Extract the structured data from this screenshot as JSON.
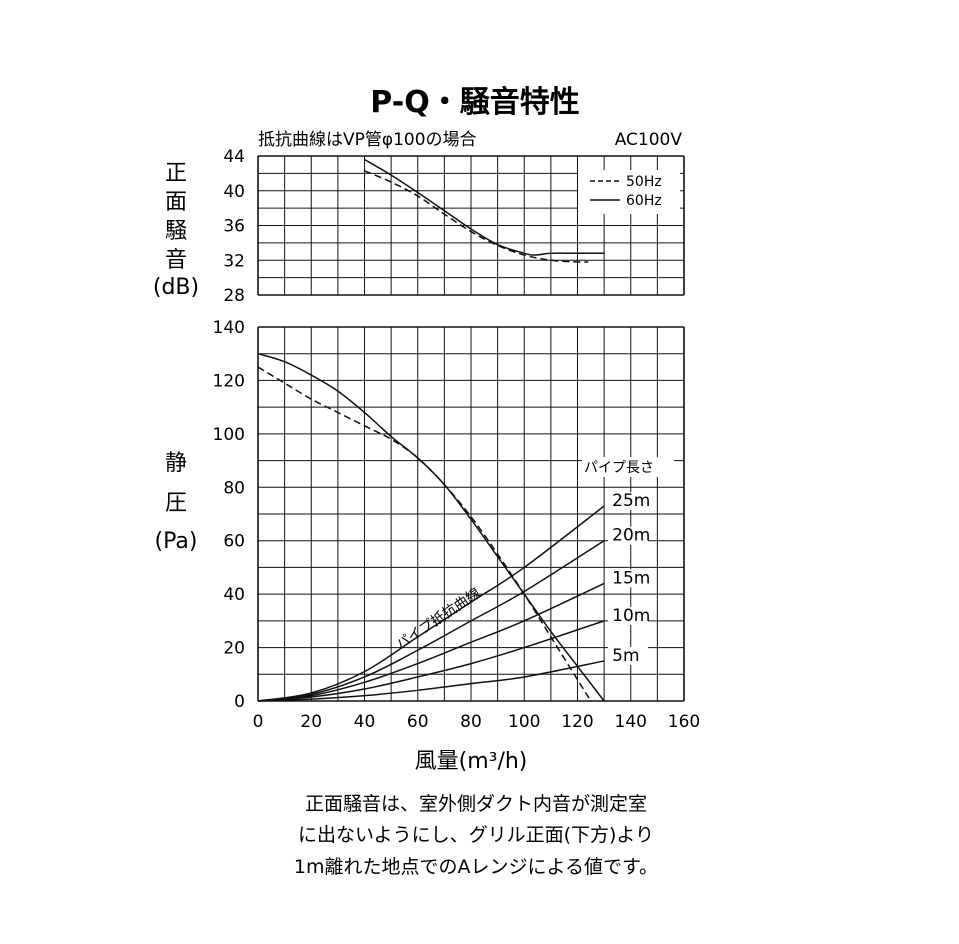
{
  "title": "P-Q・騒音特性",
  "subtitle": "抵抗曲線はVP管φ100の場合",
  "voltage": "AC100V",
  "noise_ylabel_chars": [
    "正",
    "面",
    "騒",
    "音"
  ],
  "noise_ylabel_unit": "(dB)",
  "pressure_ylabel_chars": [
    "静",
    "圧"
  ],
  "pressure_ylabel_unit": "(Pa)",
  "xlabel": "風量(m³/h)",
  "legend": [
    {
      "label": "50Hz",
      "style": "dashed"
    },
    {
      "label": "60Hz",
      "style": "solid"
    }
  ],
  "pipe_length_label": "パイプ長さ",
  "pipe_curve_label": "パイプ抵抗曲線",
  "notes": [
    "正面騒音は、室外側ダクト内音が測定室",
    "に出ないようにし、グリル正面(下方)より",
    "1m離れた地点でのAレンジによる値です。"
  ],
  "chart_data": [
    {
      "type": "line",
      "title": "",
      "ylabel": "正面騒音(dB)",
      "xlim": [
        0,
        160
      ],
      "ylim": [
        28,
        44
      ],
      "x_ticks": [
        0,
        20,
        40,
        60,
        80,
        100,
        120,
        140,
        160
      ],
      "y_ticks": [
        28,
        32,
        36,
        40,
        44
      ],
      "grid": true,
      "legend_position": "top-right",
      "series": [
        {
          "name": "50Hz",
          "style": "dashed",
          "x": [
            40,
            50,
            60,
            70,
            80,
            90,
            100,
            110,
            120,
            124
          ],
          "y": [
            42.3,
            41.0,
            39.4,
            37.3,
            35.3,
            33.7,
            32.6,
            32.0,
            31.8,
            31.8
          ]
        },
        {
          "name": "60Hz",
          "style": "solid",
          "x": [
            40,
            50,
            60,
            70,
            80,
            90,
            100,
            104,
            110,
            120,
            130
          ],
          "y": [
            43.6,
            41.8,
            39.8,
            37.7,
            35.6,
            33.8,
            32.8,
            32.6,
            32.8,
            32.8,
            32.8
          ]
        }
      ]
    },
    {
      "type": "line",
      "title": "",
      "xlabel": "風量(m³/h)",
      "ylabel": "静圧(Pa)",
      "xlim": [
        0,
        160
      ],
      "ylim": [
        0,
        140
      ],
      "x_ticks": [
        0,
        20,
        40,
        60,
        80,
        100,
        120,
        140,
        160
      ],
      "y_ticks": [
        0,
        20,
        40,
        60,
        80,
        100,
        120,
        140
      ],
      "grid": true,
      "series": [
        {
          "name": "50Hz",
          "style": "dashed",
          "x": [
            0,
            10,
            20,
            30,
            40,
            50,
            60,
            70,
            80,
            90,
            100,
            110,
            120,
            125
          ],
          "y": [
            125,
            119,
            113,
            108,
            103,
            98,
            91,
            81,
            69,
            55,
            40,
            24,
            8,
            0
          ]
        },
        {
          "name": "60Hz",
          "style": "solid",
          "x": [
            0,
            10,
            20,
            30,
            40,
            50,
            60,
            70,
            80,
            90,
            100,
            110,
            120,
            130
          ],
          "y": [
            130,
            127,
            122,
            116,
            108,
            99,
            91,
            81,
            68,
            54,
            40,
            26,
            13,
            0
          ]
        },
        {
          "name": "25m",
          "style": "solid",
          "x": [
            0,
            20,
            40,
            60,
            80,
            100,
            130
          ],
          "y": [
            0,
            3,
            11,
            24,
            37,
            50,
            73
          ]
        },
        {
          "name": "20m",
          "style": "solid",
          "x": [
            0,
            20,
            40,
            60,
            80,
            100,
            130
          ],
          "y": [
            0,
            2.5,
            9,
            19,
            30,
            41,
            60
          ]
        },
        {
          "name": "15m",
          "style": "solid",
          "x": [
            0,
            20,
            40,
            60,
            80,
            100,
            130
          ],
          "y": [
            0,
            2,
            7,
            14,
            22,
            30,
            44
          ]
        },
        {
          "name": "10m",
          "style": "solid",
          "x": [
            0,
            20,
            40,
            60,
            80,
            100,
            130
          ],
          "y": [
            0,
            1.5,
            4.5,
            9,
            14,
            20,
            30
          ]
        },
        {
          "name": "5m",
          "style": "solid",
          "x": [
            0,
            20,
            40,
            60,
            80,
            100,
            130
          ],
          "y": [
            0,
            0.7,
            2,
            4,
            6.5,
            9,
            15
          ]
        }
      ]
    }
  ]
}
